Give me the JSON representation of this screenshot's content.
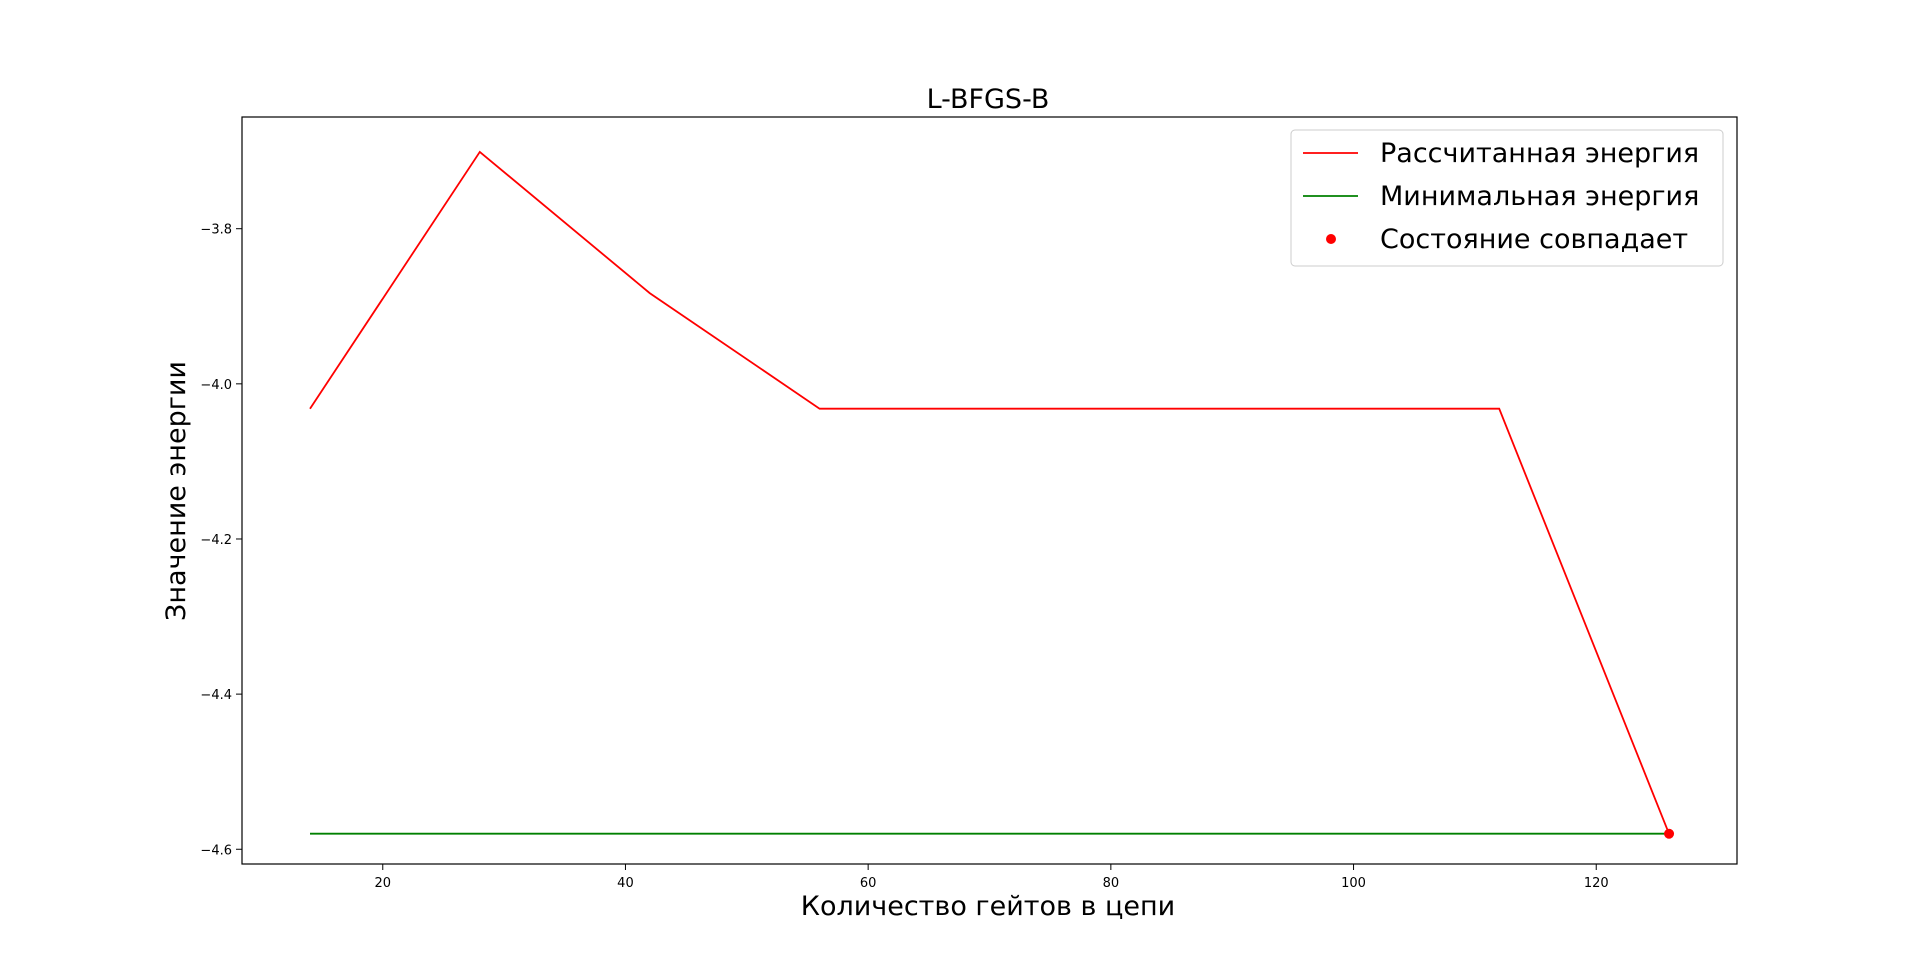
{
  "chart_data": {
    "type": "line",
    "title": "L-BFGS-B",
    "xlabel": "Количество гейтов в цепи",
    "ylabel": "Значение энергии",
    "xlim": [
      8.4,
      131.6
    ],
    "ylim": [
      -4.619,
      -3.656
    ],
    "grid": false,
    "legend_position": "top-right",
    "x_ticks": [
      20,
      40,
      60,
      80,
      100,
      120
    ],
    "y_ticks": [
      -3.8,
      -4.0,
      -4.2,
      -4.4,
      -4.6
    ],
    "series": [
      {
        "name": "Рассчитанная энергия",
        "kind": "line",
        "color": "#ff0000",
        "x": [
          14,
          28,
          42,
          56,
          70,
          84,
          98,
          112,
          126
        ],
        "y": [
          -4.032,
          -3.701,
          -3.883,
          -4.032,
          -4.032,
          -4.032,
          -4.032,
          -4.032,
          -4.58
        ]
      },
      {
        "name": "Минимальная энергия",
        "kind": "line",
        "color": "#008000",
        "x": [
          14,
          126
        ],
        "y": [
          -4.58,
          -4.58
        ]
      },
      {
        "name": "Состояние совпадает",
        "kind": "scatter",
        "color": "#ff0000",
        "x": [
          126
        ],
        "y": [
          -4.58
        ]
      }
    ]
  }
}
